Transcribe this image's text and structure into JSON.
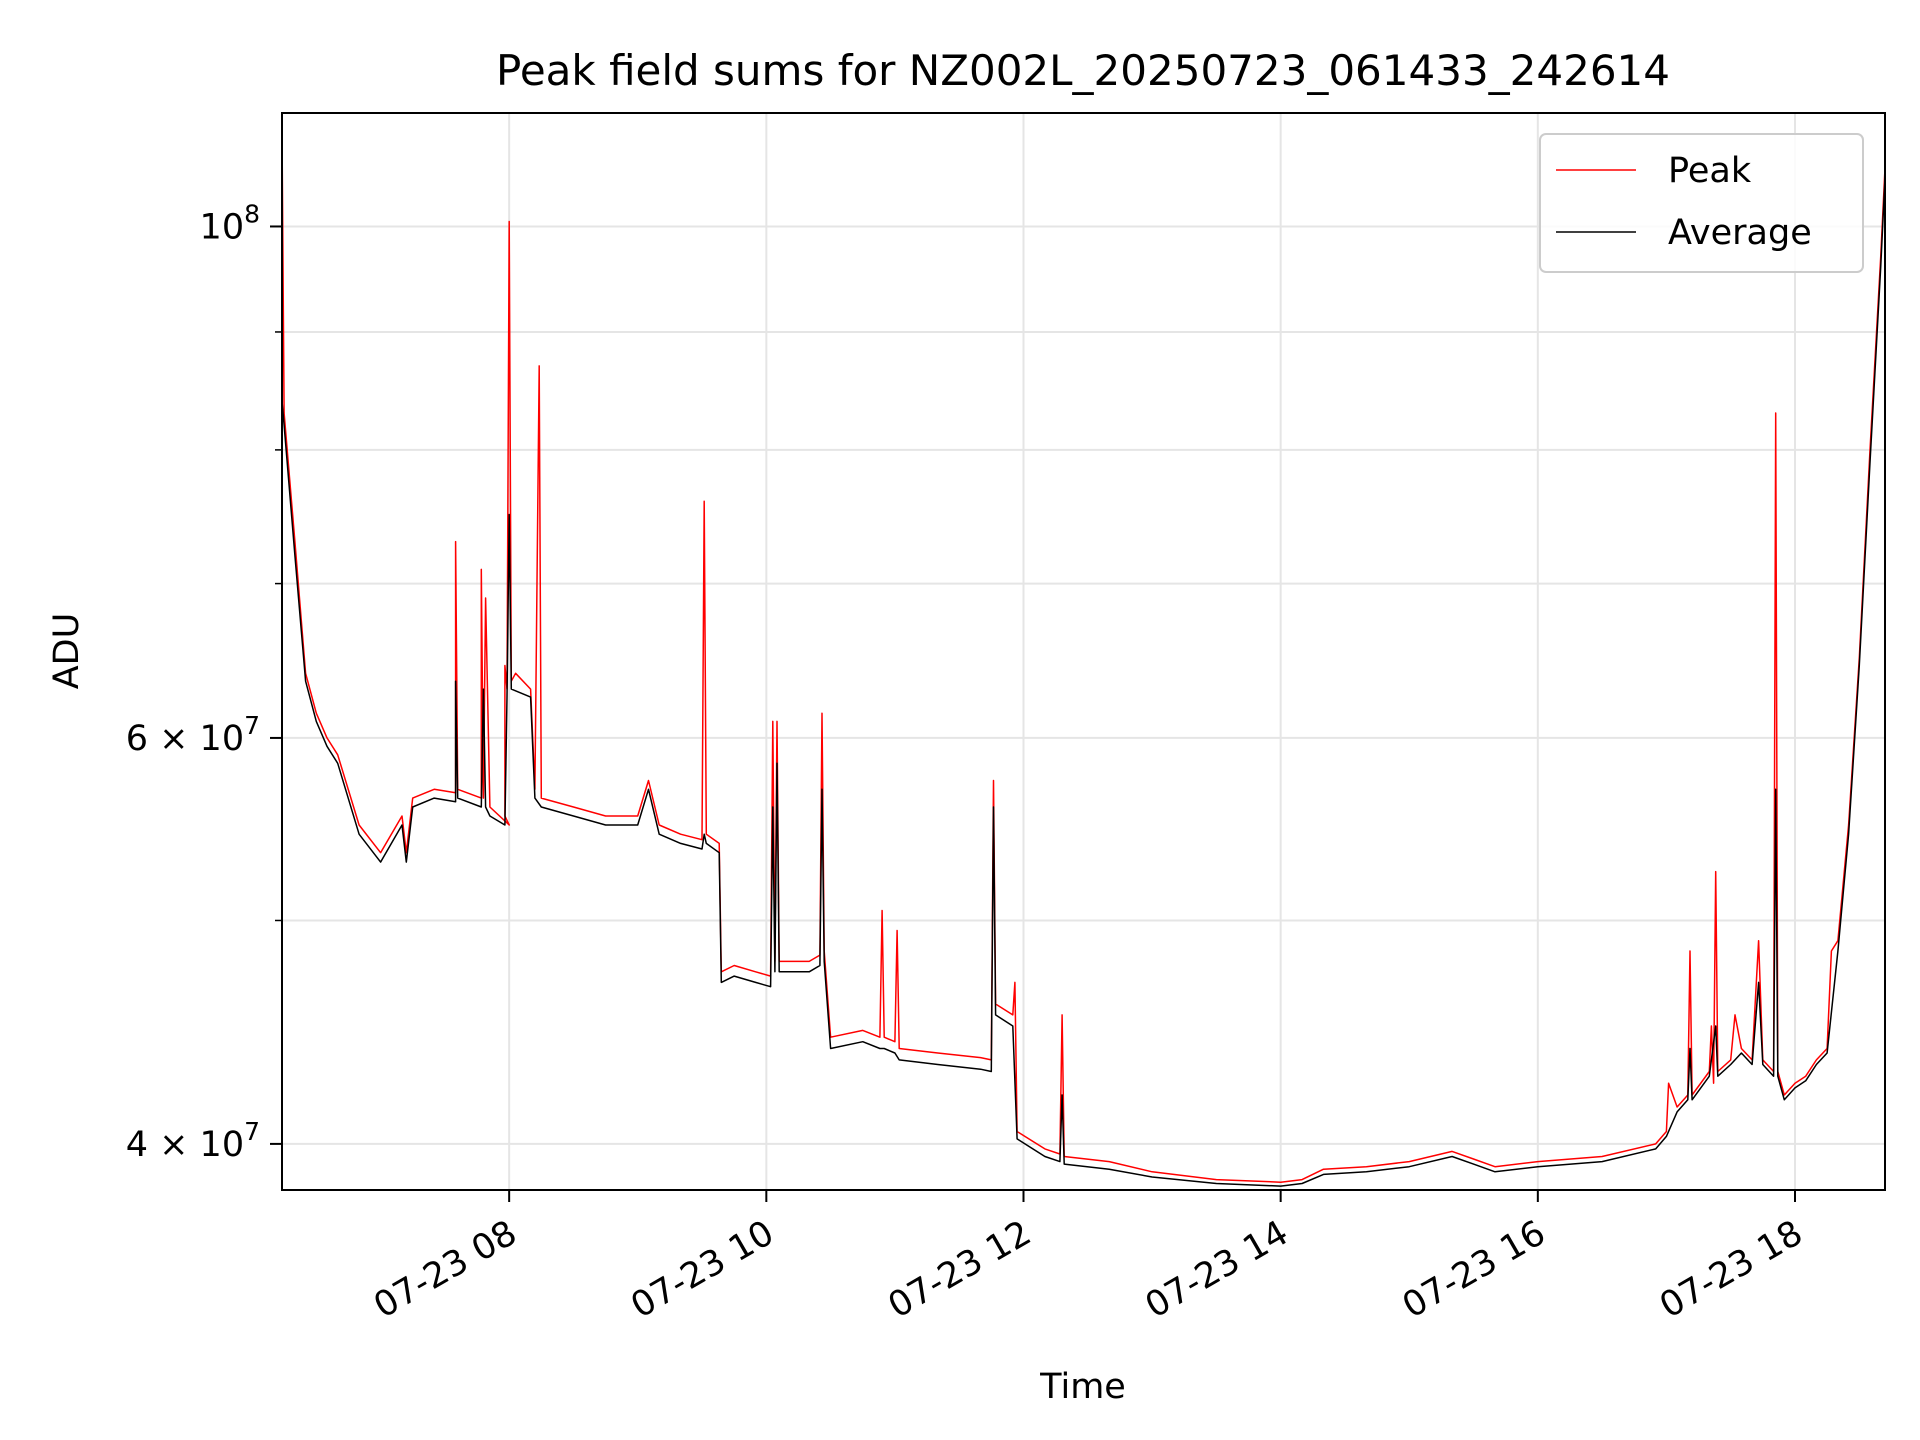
{
  "chart_data": {
    "type": "line",
    "title": "Peak field sums for NZ002L_20250723_061433_242614",
    "xlabel": "Time",
    "ylabel": "ADU",
    "x_scale": "time",
    "y_scale": "log",
    "xlim": [
      "2025-07-23 06:14",
      "2025-07-23 18:42"
    ],
    "ylim": [
      38200000,
      112000000
    ],
    "grid": true,
    "legend_position": "upper right",
    "x_ticks": [
      {
        "value": "2025-07-23 08:00",
        "label": "07-23 08"
      },
      {
        "value": "2025-07-23 10:00",
        "label": "07-23 10"
      },
      {
        "value": "2025-07-23 12:00",
        "label": "07-23 12"
      },
      {
        "value": "2025-07-23 14:00",
        "label": "07-23 14"
      },
      {
        "value": "2025-07-23 16:00",
        "label": "07-23 16"
      },
      {
        "value": "2025-07-23 18:00",
        "label": "07-23 18"
      }
    ],
    "y_major_ticks": [
      {
        "value": 40000000,
        "mantissa": "4",
        "exponent": "7"
      },
      {
        "value": 60000000,
        "mantissa": "6",
        "exponent": "7"
      },
      {
        "value": 100000000,
        "mantissa": "",
        "exponent": "8"
      }
    ],
    "y_minor_ticks": [
      50000000,
      70000000,
      80000000,
      90000000
    ],
    "series": [
      {
        "name": "Peak",
        "color": "#ff0000",
        "points": [
          [
            "2025-07-23 06:14",
            110000000
          ],
          [
            "2025-07-23 06:15",
            83000000
          ],
          [
            "2025-07-23 06:20",
            73000000
          ],
          [
            "2025-07-23 06:25",
            64000000
          ],
          [
            "2025-07-23 06:30",
            61500000
          ],
          [
            "2025-07-23 06:35",
            60000000
          ],
          [
            "2025-07-23 06:40",
            59000000
          ],
          [
            "2025-07-23 06:50",
            55000000
          ],
          [
            "2025-07-23 07:00",
            53500000
          ],
          [
            "2025-07-23 07:10",
            55500000
          ],
          [
            "2025-07-23 07:12",
            53500000
          ],
          [
            "2025-07-23 07:15",
            56500000
          ],
          [
            "2025-07-23 07:25",
            57000000
          ],
          [
            "2025-07-23 07:35",
            56800000
          ],
          [
            "2025-07-23 07:35",
            73000000
          ],
          [
            "2025-07-23 07:36",
            57000000
          ],
          [
            "2025-07-23 07:47",
            56500000
          ],
          [
            "2025-07-23 07:47",
            71000000
          ],
          [
            "2025-07-23 07:48",
            56500000
          ],
          [
            "2025-07-23 07:49",
            69000000
          ],
          [
            "2025-07-23 07:51",
            56000000
          ],
          [
            "2025-07-23 08:00",
            55000000
          ],
          [
            "2025-07-23 07:58",
            55500000
          ],
          [
            "2025-07-23 07:58",
            64500000
          ],
          [
            "2025-07-23 07:59",
            63000000
          ],
          [
            "2025-07-23 08:00",
            100500000
          ],
          [
            "2025-07-23 08:01",
            63500000
          ],
          [
            "2025-07-23 08:03",
            64000000
          ],
          [
            "2025-07-23 08:10",
            63000000
          ],
          [
            "2025-07-23 08:12",
            57000000
          ],
          [
            "2025-07-23 08:14",
            87000000
          ],
          [
            "2025-07-23 08:15",
            56500000
          ],
          [
            "2025-07-23 08:30",
            56000000
          ],
          [
            "2025-07-23 08:45",
            55500000
          ],
          [
            "2025-07-23 09:00",
            55500000
          ],
          [
            "2025-07-23 09:05",
            57500000
          ],
          [
            "2025-07-23 09:10",
            55000000
          ],
          [
            "2025-07-23 09:20",
            54500000
          ],
          [
            "2025-07-23 09:30",
            54200000
          ],
          [
            "2025-07-23 09:31",
            76000000
          ],
          [
            "2025-07-23 09:32",
            54500000
          ],
          [
            "2025-07-23 09:38",
            54000000
          ],
          [
            "2025-07-23 09:39",
            47500000
          ],
          [
            "2025-07-23 09:45",
            47800000
          ],
          [
            "2025-07-23 09:55",
            47500000
          ],
          [
            "2025-07-23 10:02",
            47300000
          ],
          [
            "2025-07-23 10:03",
            61000000
          ],
          [
            "2025-07-23 10:04",
            48000000
          ],
          [
            "2025-07-23 10:05",
            61000000
          ],
          [
            "2025-07-23 10:06",
            48000000
          ],
          [
            "2025-07-23 10:20",
            48000000
          ],
          [
            "2025-07-23 10:25",
            48300000
          ],
          [
            "2025-07-23 10:26",
            61500000
          ],
          [
            "2025-07-23 10:27",
            48500000
          ],
          [
            "2025-07-23 10:30",
            44500000
          ],
          [
            "2025-07-23 10:45",
            44800000
          ],
          [
            "2025-07-23 10:53",
            44500000
          ],
          [
            "2025-07-23 10:54",
            50500000
          ],
          [
            "2025-07-23 10:55",
            44500000
          ],
          [
            "2025-07-23 11:00",
            44300000
          ],
          [
            "2025-07-23 11:01",
            49500000
          ],
          [
            "2025-07-23 11:02",
            44000000
          ],
          [
            "2025-07-23 11:20",
            43800000
          ],
          [
            "2025-07-23 11:40",
            43600000
          ],
          [
            "2025-07-23 11:45",
            43500000
          ],
          [
            "2025-07-23 11:46",
            57500000
          ],
          [
            "2025-07-23 11:47",
            46000000
          ],
          [
            "2025-07-23 11:55",
            45500000
          ],
          [
            "2025-07-23 11:56",
            47000000
          ],
          [
            "2025-07-23 11:57",
            40500000
          ],
          [
            "2025-07-23 12:10",
            39800000
          ],
          [
            "2025-07-23 12:17",
            39600000
          ],
          [
            "2025-07-23 12:18",
            45500000
          ],
          [
            "2025-07-23 12:19",
            39500000
          ],
          [
            "2025-07-23 12:40",
            39300000
          ],
          [
            "2025-07-23 13:00",
            38900000
          ],
          [
            "2025-07-23 13:30",
            38600000
          ],
          [
            "2025-07-23 14:00",
            38500000
          ],
          [
            "2025-07-23 14:10",
            38600000
          ],
          [
            "2025-07-23 14:20",
            39000000
          ],
          [
            "2025-07-23 14:40",
            39100000
          ],
          [
            "2025-07-23 15:00",
            39300000
          ],
          [
            "2025-07-23 15:20",
            39700000
          ],
          [
            "2025-07-23 15:30",
            39400000
          ],
          [
            "2025-07-23 15:40",
            39100000
          ],
          [
            "2025-07-23 16:00",
            39300000
          ],
          [
            "2025-07-23 16:30",
            39500000
          ],
          [
            "2025-07-23 16:55",
            40000000
          ],
          [
            "2025-07-23 17:00",
            40500000
          ],
          [
            "2025-07-23 17:01",
            42500000
          ],
          [
            "2025-07-23 17:05",
            41500000
          ],
          [
            "2025-07-23 17:10",
            42000000
          ],
          [
            "2025-07-23 17:11",
            48500000
          ],
          [
            "2025-07-23 17:12",
            42000000
          ],
          [
            "2025-07-23 17:20",
            43000000
          ],
          [
            "2025-07-23 17:21",
            45000000
          ],
          [
            "2025-07-23 17:22",
            42500000
          ],
          [
            "2025-07-23 17:23",
            52500000
          ],
          [
            "2025-07-23 17:24",
            43000000
          ],
          [
            "2025-07-23 17:30",
            43500000
          ],
          [
            "2025-07-23 17:32",
            45500000
          ],
          [
            "2025-07-23 17:35",
            44000000
          ],
          [
            "2025-07-23 17:40",
            43500000
          ],
          [
            "2025-07-23 17:43",
            49000000
          ],
          [
            "2025-07-23 17:45",
            43500000
          ],
          [
            "2025-07-23 17:50",
            43000000
          ],
          [
            "2025-07-23 17:51",
            83000000
          ],
          [
            "2025-07-23 17:52",
            43000000
          ],
          [
            "2025-07-23 17:55",
            42000000
          ],
          [
            "2025-07-23 18:00",
            42500000
          ],
          [
            "2025-07-23 18:05",
            42800000
          ],
          [
            "2025-07-23 18:10",
            43500000
          ],
          [
            "2025-07-23 18:15",
            44000000
          ],
          [
            "2025-07-23 18:17",
            48500000
          ],
          [
            "2025-07-23 18:20",
            49000000
          ],
          [
            "2025-07-23 18:25",
            55000000
          ],
          [
            "2025-07-23 18:30",
            65000000
          ],
          [
            "2025-07-23 18:35",
            80000000
          ],
          [
            "2025-07-23 18:40",
            97000000
          ],
          [
            "2025-07-23 18:42",
            106000000
          ]
        ]
      },
      {
        "name": "Average",
        "color": "#000000",
        "points": [
          [
            "2025-07-23 06:14",
            84000000
          ],
          [
            "2025-07-23 06:15",
            82000000
          ],
          [
            "2025-07-23 06:20",
            72000000
          ],
          [
            "2025-07-23 06:25",
            63500000
          ],
          [
            "2025-07-23 06:30",
            61000000
          ],
          [
            "2025-07-23 06:35",
            59500000
          ],
          [
            "2025-07-23 06:40",
            58500000
          ],
          [
            "2025-07-23 06:50",
            54500000
          ],
          [
            "2025-07-23 07:00",
            53000000
          ],
          [
            "2025-07-23 07:10",
            55000000
          ],
          [
            "2025-07-23 07:12",
            53000000
          ],
          [
            "2025-07-23 07:15",
            56000000
          ],
          [
            "2025-07-23 07:25",
            56500000
          ],
          [
            "2025-07-23 07:35",
            56300000
          ],
          [
            "2025-07-23 07:35",
            63500000
          ],
          [
            "2025-07-23 07:36",
            56500000
          ],
          [
            "2025-07-23 07:47",
            56000000
          ],
          [
            "2025-07-23 07:48",
            63000000
          ],
          [
            "2025-07-23 07:49",
            56000000
          ],
          [
            "2025-07-23 07:51",
            55500000
          ],
          [
            "2025-07-23 07:58",
            55000000
          ],
          [
            "2025-07-23 07:59",
            62500000
          ],
          [
            "2025-07-23 08:00",
            75000000
          ],
          [
            "2025-07-23 08:01",
            63000000
          ],
          [
            "2025-07-23 08:10",
            62500000
          ],
          [
            "2025-07-23 08:12",
            56500000
          ],
          [
            "2025-07-23 08:15",
            56000000
          ],
          [
            "2025-07-23 08:30",
            55500000
          ],
          [
            "2025-07-23 08:45",
            55000000
          ],
          [
            "2025-07-23 09:00",
            55000000
          ],
          [
            "2025-07-23 09:05",
            57000000
          ],
          [
            "2025-07-23 09:10",
            54500000
          ],
          [
            "2025-07-23 09:20",
            54000000
          ],
          [
            "2025-07-23 09:30",
            53700000
          ],
          [
            "2025-07-23 09:31",
            54500000
          ],
          [
            "2025-07-23 09:32",
            54000000
          ],
          [
            "2025-07-23 09:38",
            53500000
          ],
          [
            "2025-07-23 09:39",
            47000000
          ],
          [
            "2025-07-23 09:45",
            47300000
          ],
          [
            "2025-07-23 09:55",
            47000000
          ],
          [
            "2025-07-23 10:02",
            46800000
          ],
          [
            "2025-07-23 10:03",
            56000000
          ],
          [
            "2025-07-23 10:04",
            47500000
          ],
          [
            "2025-07-23 10:05",
            58500000
          ],
          [
            "2025-07-23 10:06",
            47500000
          ],
          [
            "2025-07-23 10:20",
            47500000
          ],
          [
            "2025-07-23 10:25",
            47800000
          ],
          [
            "2025-07-23 10:26",
            57000000
          ],
          [
            "2025-07-23 10:27",
            48000000
          ],
          [
            "2025-07-23 10:30",
            44000000
          ],
          [
            "2025-07-23 10:45",
            44300000
          ],
          [
            "2025-07-23 10:53",
            44000000
          ],
          [
            "2025-07-23 10:55",
            44000000
          ],
          [
            "2025-07-23 11:00",
            43800000
          ],
          [
            "2025-07-23 11:02",
            43500000
          ],
          [
            "2025-07-23 11:20",
            43300000
          ],
          [
            "2025-07-23 11:40",
            43100000
          ],
          [
            "2025-07-23 11:45",
            43000000
          ],
          [
            "2025-07-23 11:46",
            56000000
          ],
          [
            "2025-07-23 11:47",
            45500000
          ],
          [
            "2025-07-23 11:55",
            45000000
          ],
          [
            "2025-07-23 11:57",
            40200000
          ],
          [
            "2025-07-23 12:10",
            39500000
          ],
          [
            "2025-07-23 12:17",
            39300000
          ],
          [
            "2025-07-23 12:18",
            42000000
          ],
          [
            "2025-07-23 12:19",
            39200000
          ],
          [
            "2025-07-23 12:40",
            39000000
          ],
          [
            "2025-07-23 13:00",
            38700000
          ],
          [
            "2025-07-23 13:30",
            38450000
          ],
          [
            "2025-07-23 14:00",
            38350000
          ],
          [
            "2025-07-23 14:10",
            38450000
          ],
          [
            "2025-07-23 14:20",
            38800000
          ],
          [
            "2025-07-23 14:40",
            38900000
          ],
          [
            "2025-07-23 15:00",
            39100000
          ],
          [
            "2025-07-23 15:20",
            39500000
          ],
          [
            "2025-07-23 15:30",
            39200000
          ],
          [
            "2025-07-23 15:40",
            38900000
          ],
          [
            "2025-07-23 16:00",
            39100000
          ],
          [
            "2025-07-23 16:30",
            39300000
          ],
          [
            "2025-07-23 16:55",
            39800000
          ],
          [
            "2025-07-23 17:00",
            40300000
          ],
          [
            "2025-07-23 17:05",
            41300000
          ],
          [
            "2025-07-23 17:10",
            41800000
          ],
          [
            "2025-07-23 17:11",
            44000000
          ],
          [
            "2025-07-23 17:12",
            41800000
          ],
          [
            "2025-07-23 17:20",
            42800000
          ],
          [
            "2025-07-23 17:23",
            45000000
          ],
          [
            "2025-07-23 17:24",
            42800000
          ],
          [
            "2025-07-23 17:30",
            43300000
          ],
          [
            "2025-07-23 17:35",
            43800000
          ],
          [
            "2025-07-23 17:40",
            43300000
          ],
          [
            "2025-07-23 17:43",
            47000000
          ],
          [
            "2025-07-23 17:45",
            43300000
          ],
          [
            "2025-07-23 17:50",
            42800000
          ],
          [
            "2025-07-23 17:51",
            57000000
          ],
          [
            "2025-07-23 17:52",
            42800000
          ],
          [
            "2025-07-23 17:55",
            41800000
          ],
          [
            "2025-07-23 18:00",
            42300000
          ],
          [
            "2025-07-23 18:05",
            42600000
          ],
          [
            "2025-07-23 18:10",
            43300000
          ],
          [
            "2025-07-23 18:15",
            43800000
          ],
          [
            "2025-07-23 18:20",
            48500000
          ],
          [
            "2025-07-23 18:25",
            54500000
          ],
          [
            "2025-07-23 18:30",
            64500000
          ],
          [
            "2025-07-23 18:35",
            79000000
          ],
          [
            "2025-07-23 18:40",
            96000000
          ],
          [
            "2025-07-23 18:42",
            105000000
          ]
        ]
      }
    ]
  }
}
